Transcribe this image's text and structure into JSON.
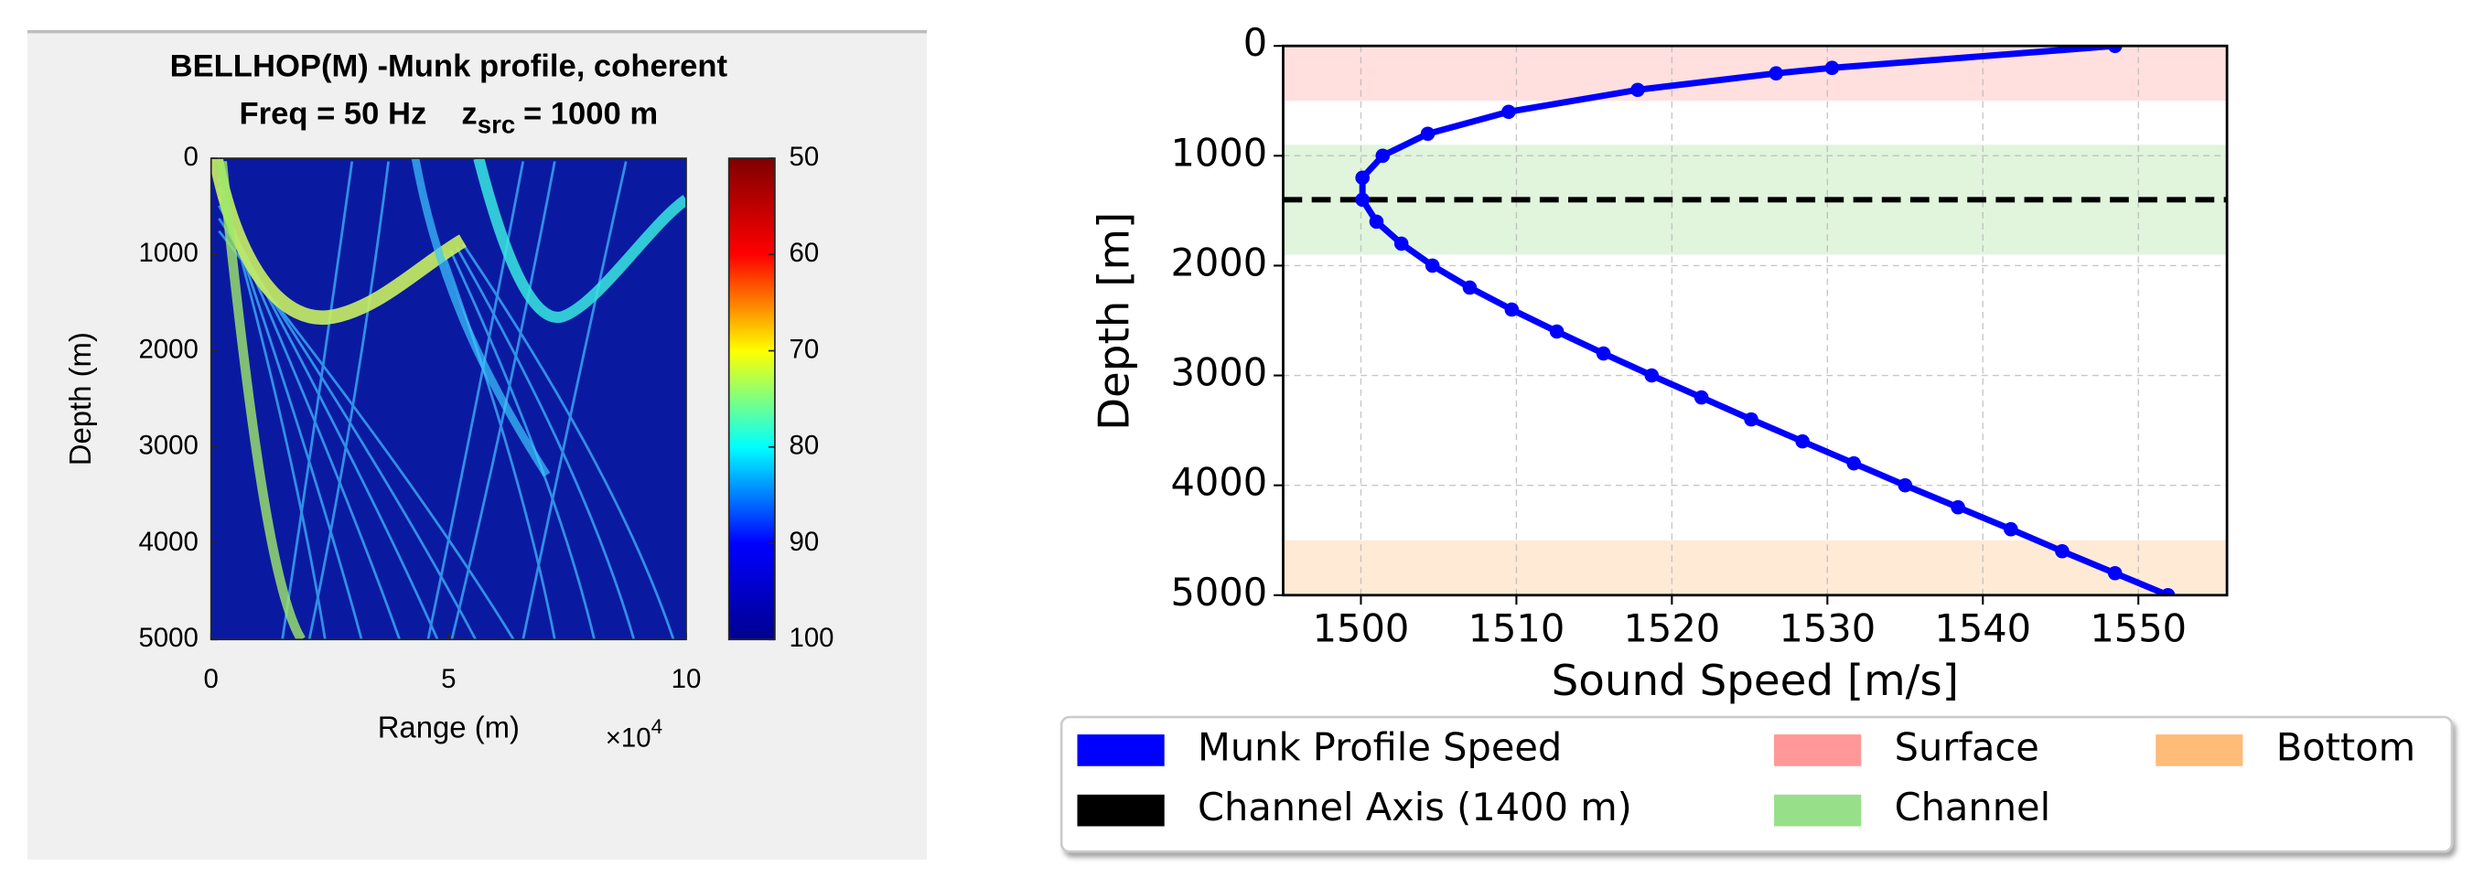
{
  "chart_data": [
    {
      "type": "image",
      "title": "BELLHOP(M) -Munk profile, coherent",
      "subtitle": {
        "prefix": "Freq = 50 Hz",
        "symbol": "z",
        "subscript": "src",
        "suffix": "= 1000 m"
      },
      "xlabel": "Range (m)",
      "ylabel": "Depth (m)",
      "xlim": [
        0,
        100000
      ],
      "xticks": [
        0,
        {
          "value": 50000,
          "label": "5"
        },
        {
          "value": 100000,
          "label": "10"
        }
      ],
      "x_scale_label": {
        "base": "×10",
        "exponent": "4"
      },
      "ylim": [
        0,
        5000
      ],
      "yticks": [
        0,
        1000,
        2000,
        3000,
        4000,
        5000
      ],
      "colorbar": {
        "lim": [
          50,
          100
        ],
        "ticks": [
          50,
          60,
          70,
          80,
          90,
          100
        ],
        "colors": [
          "#800000",
          "#ff0000",
          "#ffff00",
          "#00ffff",
          "#0000ff",
          "#00008f"
        ]
      }
    },
    {
      "type": "line",
      "xlabel": "Sound Speed [m/s]",
      "ylabel": "Depth [m]",
      "xlim": [
        1495,
        1555.7
      ],
      "xticks": [
        1500,
        1510,
        1520,
        1530,
        1540,
        1550
      ],
      "ylim": [
        5000,
        0
      ],
      "yticks": [
        0,
        1000,
        2000,
        3000,
        4000,
        5000
      ],
      "grid": true,
      "legend": "lower center",
      "series": [
        {
          "name": "Munk Profile Speed",
          "color": "#0000ff",
          "x": [
            1548.5,
            1530.3,
            1526.7,
            1517.8,
            1509.5,
            1504.3,
            1501.4,
            1500.1,
            1500.1,
            1501.0,
            1502.6,
            1504.6,
            1507.0,
            1509.7,
            1512.6,
            1515.6,
            1518.7,
            1521.9,
            1525.1,
            1528.4,
            1531.7,
            1535.0,
            1538.4,
            1541.8,
            1545.1,
            1548.5,
            1551.9
          ],
          "y": [
            0,
            200,
            250,
            400,
            600,
            800,
            1000,
            1200,
            1400,
            1600,
            1800,
            2000,
            2200,
            2400,
            2600,
            2800,
            3000,
            3200,
            3400,
            3600,
            3800,
            4000,
            4200,
            4400,
            4600,
            4800,
            5000
          ]
        }
      ],
      "hlines": [
        {
          "name": "Channel Axis (1400 m)",
          "color": "#000000",
          "y": 1400
        }
      ],
      "bands": [
        {
          "name": "Surface",
          "color": "#ff9896",
          "range": [
            0,
            500
          ]
        },
        {
          "name": "Channel",
          "color": "#98df8a",
          "range": [
            900,
            1900
          ]
        },
        {
          "name": "Bottom",
          "color": "#ffbb78",
          "range": [
            4500,
            5000
          ]
        }
      ]
    }
  ]
}
